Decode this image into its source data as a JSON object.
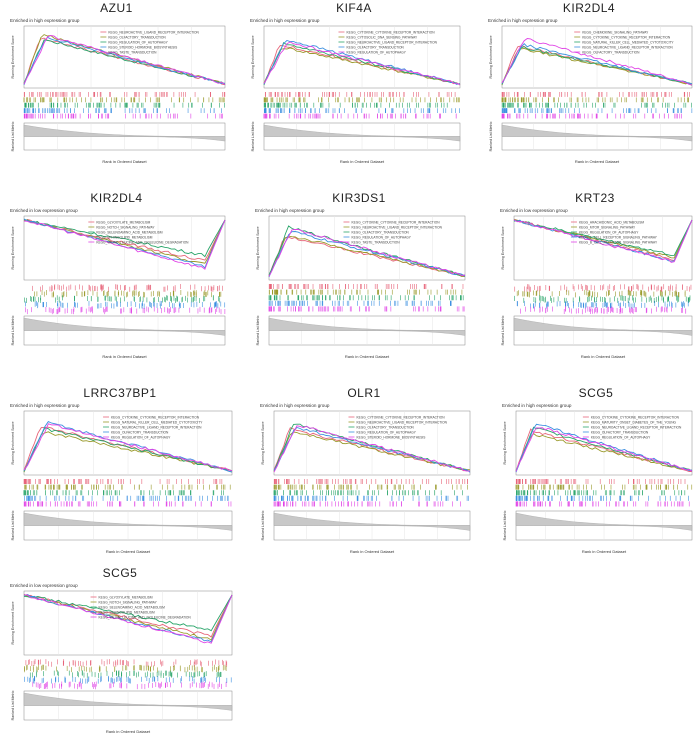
{
  "colors": {
    "pink": "#e7657a",
    "olive": "#9a9a2c",
    "green": "#2aa56a",
    "blue": "#3b8fe0",
    "magenta": "#e043e6",
    "rank_fill": "#c8c8c8",
    "axis": "#555555"
  },
  "chart_data": [
    {
      "type": "line",
      "title": "AZU1",
      "subtitle": "Enriched in high expression group",
      "direction": "high",
      "ylabel": "Running Enrichment Score",
      "ylabel2": "Ranked List Metric",
      "xlabel": "Rank in Ordered Dataset",
      "series": [
        {
          "name": "KEGG_NEUROACTIVE_LIGAND_RECEPTOR_INTERACTION",
          "values": [
            0,
            0.72,
            0.55,
            0.38,
            0.22,
            0.06
          ]
        },
        {
          "name": "KEGG_OLFACTORY_TRANSDUCTION",
          "values": [
            0,
            0.78,
            0.58,
            0.4,
            0.23,
            0.06
          ]
        },
        {
          "name": "KEGG_REGULATION_OF_AUTOPHAGY",
          "values": [
            0,
            0.7,
            0.54,
            0.37,
            0.21,
            0.06
          ]
        },
        {
          "name": "KEGG_STEROID_HORMONE_BIOSYNTHESIS",
          "values": [
            0,
            0.74,
            0.56,
            0.39,
            0.22,
            0.06
          ]
        },
        {
          "name": "KEGG_TASTE_TRANSDUCTION",
          "values": [
            0,
            0.76,
            0.57,
            0.39,
            0.22,
            0.06
          ]
        }
      ]
    },
    {
      "type": "line",
      "title": "KIF4A",
      "subtitle": "Enriched in high expression group",
      "direction": "high",
      "ylabel": "Running Enrichment Score",
      "ylabel2": "Ranked List Metric",
      "xlabel": "Rank in Ordered Dataset",
      "series": [
        {
          "name": "KEGG_CYTOKINE_CYTOKINE_RECEPTOR_INTERACTION",
          "values": [
            0,
            0.62,
            0.5,
            0.35,
            0.2,
            0.05
          ]
        },
        {
          "name": "KEGG_CYTOSOLIC_DNA_SENSING_PATHWAY",
          "values": [
            0,
            0.58,
            0.48,
            0.34,
            0.19,
            0.05
          ]
        },
        {
          "name": "KEGG_NEUROACTIVE_LIGAND_RECEPTOR_INTERACTION",
          "values": [
            0,
            0.64,
            0.51,
            0.36,
            0.2,
            0.05
          ]
        },
        {
          "name": "KEGG_OLFACTORY_TRANSDUCTION",
          "values": [
            0,
            0.7,
            0.54,
            0.38,
            0.21,
            0.05
          ]
        },
        {
          "name": "KEGG_REGULATION_OF_AUTOPHAGY",
          "values": [
            0,
            0.66,
            0.52,
            0.37,
            0.21,
            0.05
          ]
        }
      ]
    },
    {
      "type": "line",
      "title": "KIR2DL4",
      "subtitle": "Enriched in high expression group",
      "direction": "high",
      "ylabel": "Running Enrichment Score",
      "ylabel2": "Ranked List Metric",
      "xlabel": "Rank in Ordered Dataset",
      "series": [
        {
          "name": "KEGG_CHEMOKINE_SIGNALING_PATHWAY",
          "values": [
            0,
            0.6,
            0.5,
            0.36,
            0.21,
            0.05
          ]
        },
        {
          "name": "KEGG_CYTOKINE_CYTOKINE_RECEPTOR_INTERACTION",
          "values": [
            0,
            0.56,
            0.47,
            0.34,
            0.2,
            0.05
          ]
        },
        {
          "name": "KEGG_NATURAL_KILLER_CELL_MEDIATED_CYTOTOXICITY",
          "values": [
            0,
            0.58,
            0.48,
            0.35,
            0.2,
            0.05
          ]
        },
        {
          "name": "KEGG_NEUROACTIVE_LIGAND_RECEPTOR_INTERACTION",
          "values": [
            0,
            0.62,
            0.51,
            0.37,
            0.21,
            0.05
          ]
        },
        {
          "name": "KEGG_OLFACTORY_TRANSDUCTION",
          "values": [
            0,
            0.72,
            0.56,
            0.4,
            0.22,
            0.05
          ]
        }
      ]
    },
    {
      "type": "line",
      "title": "KIR2DL4",
      "subtitle": "Enriched in low expression group",
      "direction": "low",
      "ylabel": "Running Enrichment Score",
      "ylabel2": "Ranked List Metric",
      "xlabel": "Rank in Ordered Dataset",
      "series": [
        {
          "name": "KEGG_GLYOXYLATE_METABOLISM",
          "values": [
            0,
            -0.15,
            -0.35,
            -0.55,
            -0.72,
            0
          ]
        },
        {
          "name": "KEGG_NOTCH_SIGNALING_PATHWAY",
          "values": [
            0,
            -0.2,
            -0.4,
            -0.6,
            -0.78,
            0
          ]
        },
        {
          "name": "KEGG_SELENOAMINO_ACID_METABOLISM",
          "values": [
            0,
            -0.05,
            -0.22,
            -0.4,
            -0.62,
            0
          ]
        },
        {
          "name": "KEGG_SPHINGOLIPID_METABOLISM",
          "values": [
            0,
            -0.25,
            -0.45,
            -0.65,
            -0.82,
            0
          ]
        },
        {
          "name": "KEGG_VALINE_LEUCINE_AND_ISOLEUCINE_DEGRADATION",
          "values": [
            0,
            -0.28,
            -0.48,
            -0.68,
            -0.85,
            0
          ]
        }
      ]
    },
    {
      "type": "line",
      "title": "KIR3DS1",
      "subtitle": "Enriched in high expression group",
      "direction": "high",
      "ylabel": "Running Enrichment Score",
      "ylabel2": "Ranked List Metric",
      "xlabel": "Rank in Ordered Dataset",
      "series": [
        {
          "name": "KEGG_CYTOKINE_CYTOKINE_RECEPTOR_INTERACTION",
          "values": [
            0,
            0.6,
            0.48,
            0.34,
            0.19,
            0.05
          ]
        },
        {
          "name": "KEGG_NEUROACTIVE_LIGAND_RECEPTOR_INTERACTION",
          "values": [
            0,
            0.62,
            0.49,
            0.35,
            0.2,
            0.05
          ]
        },
        {
          "name": "KEGG_OLFACTORY_TRANSDUCTION",
          "values": [
            0,
            0.74,
            0.56,
            0.39,
            0.22,
            0.05
          ]
        },
        {
          "name": "KEGG_REGULATION_OF_AUTOPHAGY",
          "values": [
            0,
            0.68,
            0.53,
            0.37,
            0.21,
            0.05
          ]
        },
        {
          "name": "KEGG_TASTE_TRANSDUCTION",
          "values": [
            0,
            0.72,
            0.55,
            0.38,
            0.21,
            0.05
          ]
        }
      ]
    },
    {
      "type": "line",
      "title": "KRT23",
      "subtitle": "Enriched in low expression group",
      "direction": "low",
      "ylabel": "Running Enrichment Score",
      "ylabel2": "Ranked List Metric",
      "xlabel": "Rank in Ordered Dataset",
      "series": [
        {
          "name": "KEGG_ARACHIDONIC_ACID_METABOLISM",
          "values": [
            0,
            -0.12,
            -0.32,
            -0.52,
            -0.7,
            0
          ]
        },
        {
          "name": "KEGG_MTOR_SIGNALING_PATHWAY",
          "values": [
            0,
            -0.1,
            -0.28,
            -0.48,
            -0.66,
            0
          ]
        },
        {
          "name": "KEGG_REGULATION_OF_AUTOPHAGY",
          "values": [
            0,
            -0.06,
            -0.24,
            -0.44,
            -0.62,
            0
          ]
        },
        {
          "name": "KEGG_T_CELL_RECEPTOR_SIGNALING_PATHWAY",
          "values": [
            0,
            -0.14,
            -0.34,
            -0.54,
            -0.72,
            0
          ]
        },
        {
          "name": "KEGG_B_CELL_RECEPTOR_SIGNALING_PATHWAY",
          "values": [
            0,
            -0.16,
            -0.36,
            -0.56,
            -0.74,
            0
          ]
        }
      ]
    },
    {
      "type": "line",
      "title": "LRRC37BP1",
      "subtitle": "Enriched in high expression group",
      "direction": "high",
      "ylabel": "Running Enrichment Score",
      "ylabel2": "Ranked List Metric",
      "xlabel": "Rank in Ordered Dataset",
      "series": [
        {
          "name": "KEGG_CYTOKINE_CYTOKINE_RECEPTOR_INTERACTION",
          "values": [
            0,
            0.68,
            0.52,
            0.36,
            0.2,
            0.05
          ]
        },
        {
          "name": "KEGG_NATURAL_KILLER_CELL_MEDIATED_CYTOTOXICITY",
          "values": [
            0,
            0.6,
            0.47,
            0.33,
            0.19,
            0.05
          ]
        },
        {
          "name": "KEGG_NEUROACTIVE_LIGAND_RECEPTOR_INTERACTION",
          "values": [
            0,
            0.64,
            0.5,
            0.35,
            0.2,
            0.05
          ]
        },
        {
          "name": "KEGG_OLFACTORY_TRANSDUCTION",
          "values": [
            0,
            0.74,
            0.56,
            0.39,
            0.22,
            0.05
          ]
        },
        {
          "name": "KEGG_REGULATION_OF_AUTOPHAGY",
          "values": [
            0,
            0.72,
            0.55,
            0.38,
            0.21,
            0.05
          ]
        }
      ]
    },
    {
      "type": "line",
      "title": "OLR1",
      "subtitle": "Enriched in high expression group",
      "direction": "high",
      "ylabel": "Running Enrichment Score",
      "ylabel2": "Ranked List Metric",
      "xlabel": "Rank in Ordered Dataset",
      "series": [
        {
          "name": "KEGG_CYTOKINE_CYTOKINE_RECEPTOR_INTERACTION",
          "values": [
            0,
            0.64,
            0.5,
            0.35,
            0.2,
            0.05
          ]
        },
        {
          "name": "KEGG_NEUROACTIVE_LIGAND_RECEPTOR_INTERACTION",
          "values": [
            0,
            0.6,
            0.48,
            0.34,
            0.19,
            0.05
          ]
        },
        {
          "name": "KEGG_OLFACTORY_TRANSDUCTION",
          "values": [
            0,
            0.72,
            0.55,
            0.38,
            0.21,
            0.05
          ]
        },
        {
          "name": "KEGG_REGULATION_OF_AUTOPHAGY",
          "values": [
            0,
            0.66,
            0.51,
            0.36,
            0.2,
            0.05
          ]
        },
        {
          "name": "KEGG_STEROID_HORMONE_BIOSYNTHESIS",
          "values": [
            0,
            0.7,
            0.54,
            0.37,
            0.21,
            0.05
          ]
        }
      ]
    },
    {
      "type": "line",
      "title": "SCG5",
      "subtitle": "Enriched in high expression group",
      "direction": "high",
      "ylabel": "Running Enrichment Score",
      "ylabel2": "Ranked List Metric",
      "xlabel": "Rank in Ordered Dataset",
      "series": [
        {
          "name": "KEGG_CYTOKINE_CYTOKINE_RECEPTOR_INTERACTION",
          "values": [
            0,
            0.62,
            0.49,
            0.35,
            0.2,
            0.05
          ]
        },
        {
          "name": "KEGG_MATURITY_ONSET_DIABETES_OF_THE_YOUNG",
          "values": [
            0,
            0.56,
            0.46,
            0.33,
            0.19,
            0.05
          ]
        },
        {
          "name": "KEGG_NEUROACTIVE_LIGAND_RECEPTOR_INTERACTION",
          "values": [
            0,
            0.66,
            0.51,
            0.36,
            0.2,
            0.05
          ]
        },
        {
          "name": "KEGG_OLFACTORY_TRANSDUCTION",
          "values": [
            0,
            0.72,
            0.55,
            0.38,
            0.21,
            0.05
          ]
        },
        {
          "name": "KEGG_REGULATION_OF_AUTOPHAGY",
          "values": [
            0,
            0.68,
            0.53,
            0.37,
            0.21,
            0.05
          ]
        }
      ]
    },
    {
      "type": "line",
      "title": "SCG5",
      "subtitle": "Enriched in low expression group",
      "direction": "low",
      "ylabel": "Running Enrichment Score",
      "ylabel2": "Ranked List Metric",
      "xlabel": "Rank in Ordered Dataset",
      "series": [
        {
          "name": "KEGG_GLYOXYLATE_METABOLISM",
          "values": [
            0,
            -0.15,
            -0.35,
            -0.55,
            -0.72,
            0
          ]
        },
        {
          "name": "KEGG_NOTCH_SIGNALING_PATHWAY",
          "values": [
            0,
            -0.2,
            -0.4,
            -0.6,
            -0.78,
            0
          ]
        },
        {
          "name": "KEGG_SELENOAMINO_ACID_METABOLISM",
          "values": [
            0,
            -0.05,
            -0.22,
            -0.4,
            -0.62,
            0
          ]
        },
        {
          "name": "KEGG_SPHINGOLIPID_METABOLISM",
          "values": [
            0,
            -0.25,
            -0.45,
            -0.65,
            -0.82,
            0
          ]
        },
        {
          "name": "KEGG_VALINE_LEUCINE_AND_ISOLEUCINE_DEGRADATION",
          "values": [
            0,
            -0.28,
            -0.48,
            -0.68,
            -0.85,
            0
          ]
        }
      ]
    }
  ]
}
